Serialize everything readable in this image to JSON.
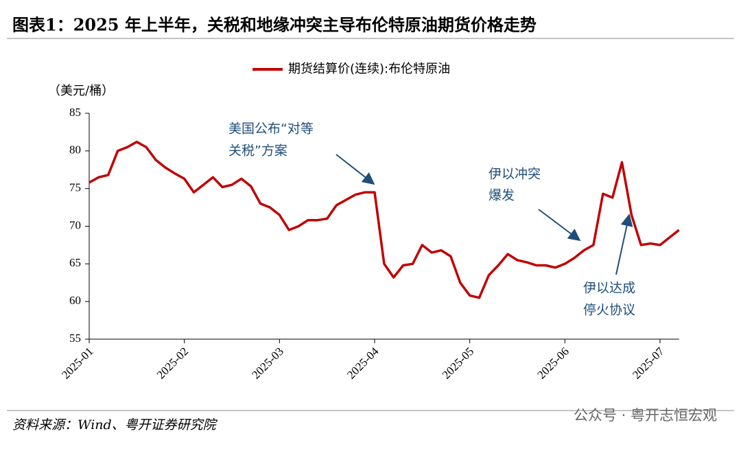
{
  "chart_data": {
    "type": "line",
    "title": "图表1：2025 年上半年，关税和地缘冲突主导布伦特原油期货价格走势",
    "y_label": "（美元/桶）",
    "source": "资料来源：Wind、粤开证券研究院",
    "watermark": "公众号 · 粤开志恒宏观",
    "annotations": [
      {
        "lines": [
          "美国公布“对等",
          "关税”方案"
        ]
      },
      {
        "lines": [
          "伊以冲突",
          "爆发"
        ]
      },
      {
        "lines": [
          "伊以达成",
          "停火协议"
        ]
      }
    ],
    "categories": [
      "2025-01",
      null,
      null,
      null,
      null,
      null,
      null,
      null,
      null,
      null,
      "2025-02",
      null,
      null,
      null,
      null,
      null,
      null,
      null,
      null,
      null,
      "2025-03",
      null,
      null,
      null,
      null,
      null,
      null,
      null,
      null,
      null,
      "2025-04",
      null,
      null,
      null,
      null,
      null,
      null,
      null,
      null,
      null,
      "2025-05",
      null,
      null,
      null,
      null,
      null,
      null,
      null,
      null,
      null,
      "2025-06",
      null,
      null,
      null,
      null,
      null,
      null,
      null,
      null,
      null,
      "2025-07",
      null,
      null
    ],
    "series": [
      {
        "name": "期货结算价(连续):布伦特原油",
        "color": "#c00000",
        "values": [
          75.8,
          76.5,
          76.8,
          80,
          80.5,
          81.2,
          80.5,
          78.8,
          77.8,
          77,
          76.3,
          74.5,
          75.5,
          76.5,
          75.2,
          75.5,
          76.3,
          75.3,
          73,
          72.5,
          71.5,
          69.5,
          70,
          70.8,
          70.8,
          71,
          72.8,
          73.5,
          74.2,
          74.5,
          74.5,
          65,
          63.2,
          64.8,
          65,
          67.5,
          66.5,
          66.8,
          66,
          62.5,
          60.8,
          60.5,
          63.5,
          64.8,
          66.3,
          65.5,
          65.2,
          64.8,
          64.8,
          64.5,
          65,
          65.8,
          66.8,
          67.5,
          74.3,
          73.8,
          78.5,
          71.5,
          67.5,
          67.7,
          67.5,
          68.5,
          69.5
        ]
      }
    ],
    "ylim": [
      55,
      85
    ],
    "yticks": [
      55,
      60,
      65,
      70,
      75,
      80,
      85
    ]
  }
}
